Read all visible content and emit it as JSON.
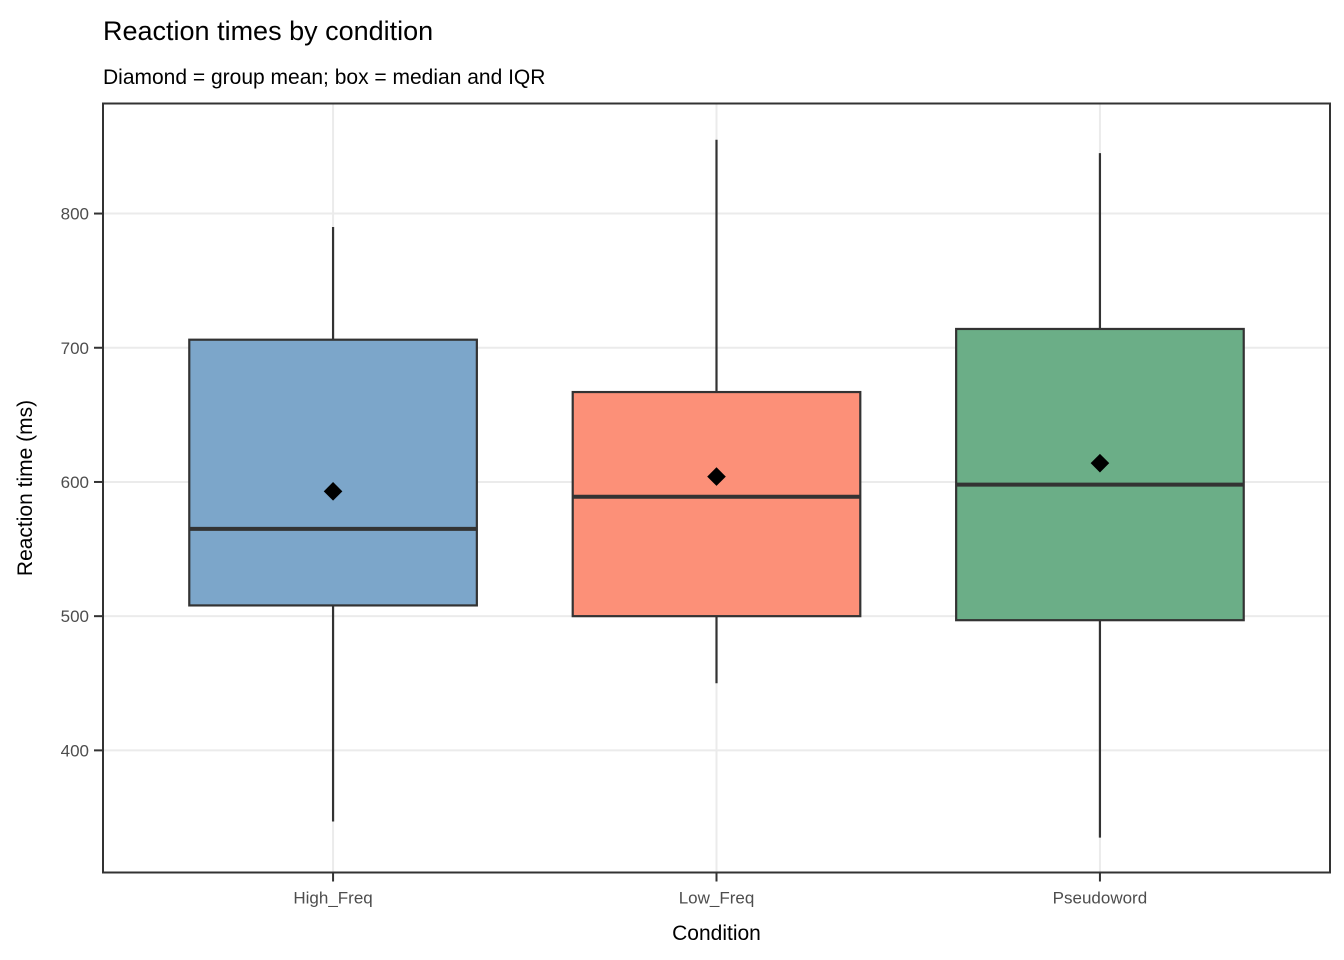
{
  "chart_data": {
    "type": "boxplot",
    "title": "Reaction times by condition",
    "subtitle": "Diamond = group mean; box = median and IQR",
    "xlabel": "Condition",
    "ylabel": "Reaction time (ms)",
    "ylim": [
      309,
      882
    ],
    "y_ticks": [
      400,
      500,
      600,
      700,
      800
    ],
    "categories": [
      "High_Freq",
      "Low_Freq",
      "Pseudoword"
    ],
    "series": [
      {
        "name": "High_Freq",
        "whisker_low": 347,
        "q1": 508,
        "median": 565,
        "q3": 706,
        "whisker_high": 790,
        "mean": 593,
        "fill": "#7CA6CA"
      },
      {
        "name": "Low_Freq",
        "whisker_low": 450,
        "q1": 500,
        "median": 589,
        "q3": 667,
        "whisker_high": 855,
        "mean": 604,
        "fill": "#FC9078"
      },
      {
        "name": "Pseudoword",
        "whisker_low": 335,
        "q1": 497,
        "median": 598,
        "q3": 714,
        "whisker_high": 845,
        "mean": 614,
        "fill": "#6BAE87"
      }
    ],
    "legend": "none",
    "grid": "major-horizontal-and-category-vertical",
    "colors": {
      "box_border": "#333333",
      "median_line": "#333333",
      "whisker": "#333333",
      "mean_marker": "#000000",
      "gridline": "#EBEBEB",
      "panel_border": "#333333",
      "tick_mark": "#333333",
      "tick_label": "#4D4D4D",
      "axis_title": "#000000",
      "title": "#000000",
      "background": "#FFFFFF"
    }
  }
}
